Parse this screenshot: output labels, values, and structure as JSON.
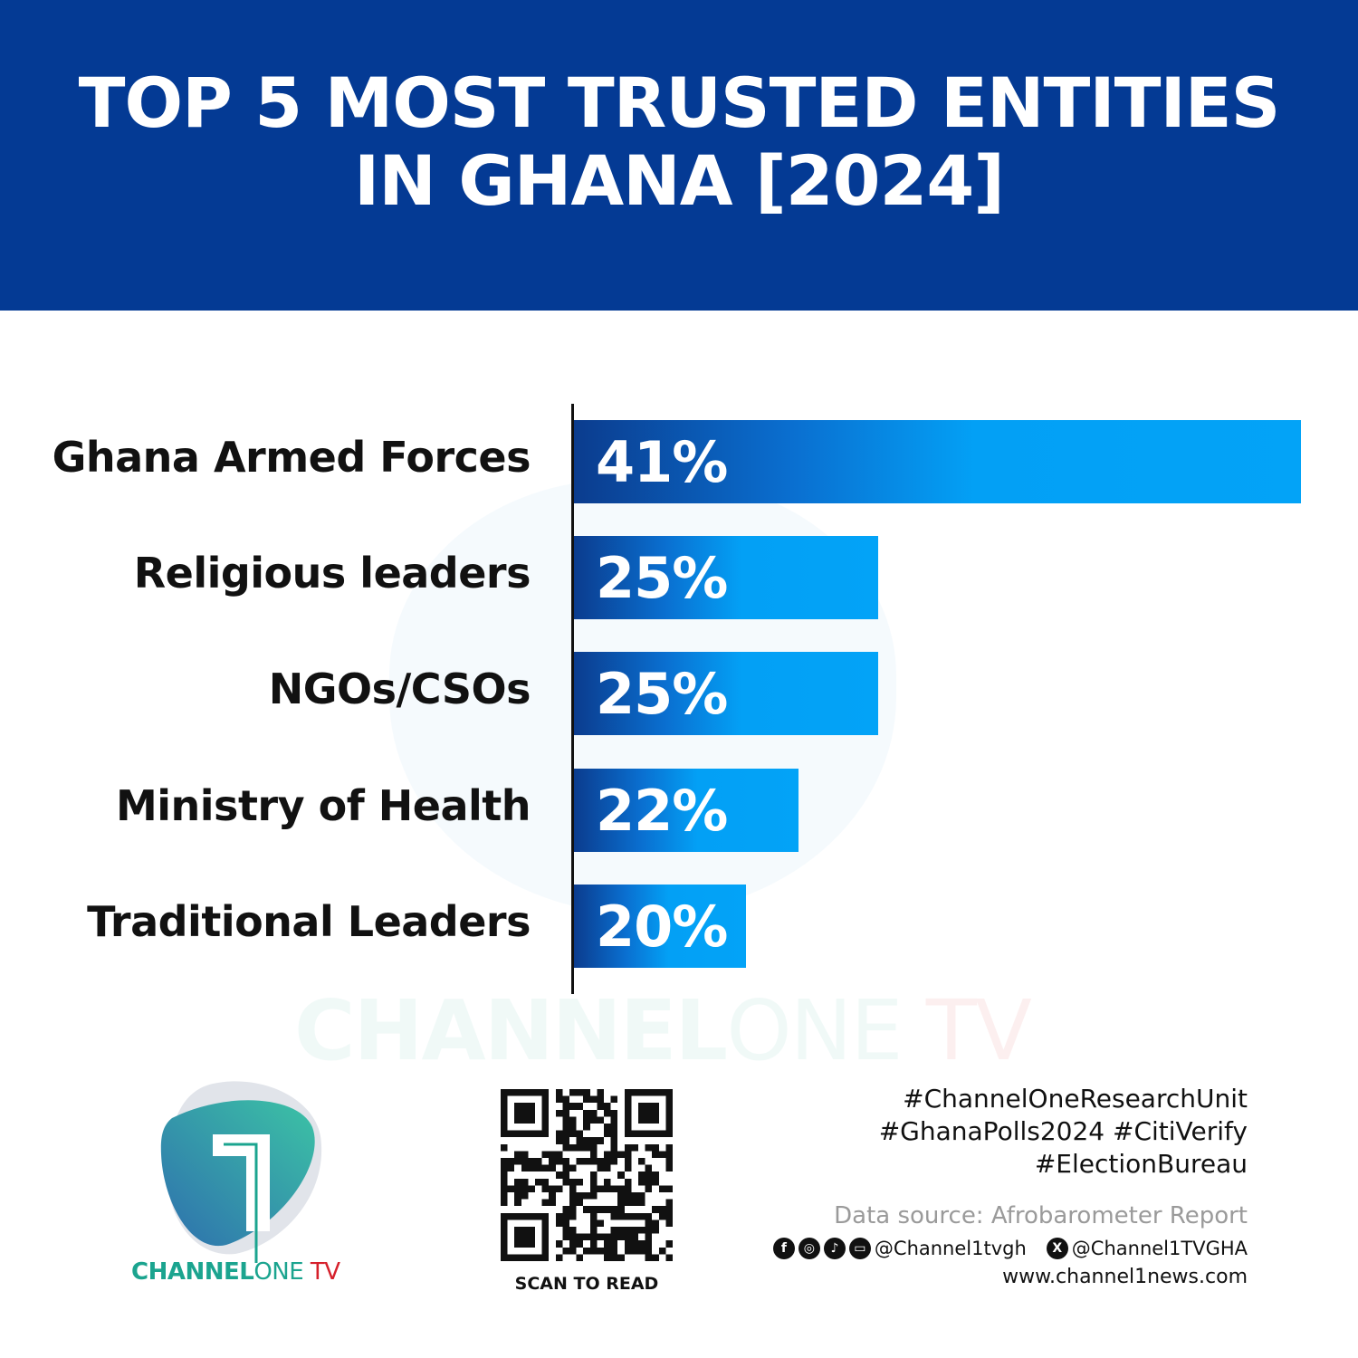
{
  "header": {
    "title": "TOP 5 MOST TRUSTED ENTITIES IN GHANA [2024]"
  },
  "chart_data": {
    "type": "bar",
    "orientation": "horizontal",
    "title": "TOP 5 MOST TRUSTED ENTITIES IN GHANA [2024]",
    "categories": [
      "Ghana Armed Forces",
      "Religious leaders",
      "NGOs/CSOs",
      "Ministry of Health",
      "Traditional Leaders"
    ],
    "values": [
      41,
      25,
      25,
      22,
      20
    ],
    "data_labels": [
      "41%",
      "25%",
      "25%",
      "22%",
      "20%"
    ],
    "xlim": [
      13.5,
      41
    ],
    "grid": false,
    "colors": {
      "bar_start": "#0b3c8e",
      "bar_end": "#03a3f7"
    }
  },
  "watermark": {
    "brand": "CHANNEL",
    "one": "ONE",
    "tv": " TV"
  },
  "logo": {
    "brand": "CHANNEL",
    "one": "ONE",
    "tv": " TV",
    "colors": {
      "teal": "#1ba48f",
      "red": "#d6202b"
    }
  },
  "qr": {
    "caption": "SCAN TO READ"
  },
  "footer": {
    "tags": [
      "#ChannelOneResearchUnit",
      "#GhanaPolls2024 #CitiVerify",
      "#ElectionBureau"
    ],
    "source": "Data source: Afrobarometer Report",
    "social_icons": [
      "facebook-icon",
      "instagram-icon",
      "tiktok-icon",
      "youtube-icon",
      "x-icon"
    ],
    "handle_main": "@Channel1tvgh",
    "handle_x": "@Channel1TVGHA",
    "website": "www.channel1news.com"
  },
  "colors": {
    "header_bg": "#043a94"
  }
}
